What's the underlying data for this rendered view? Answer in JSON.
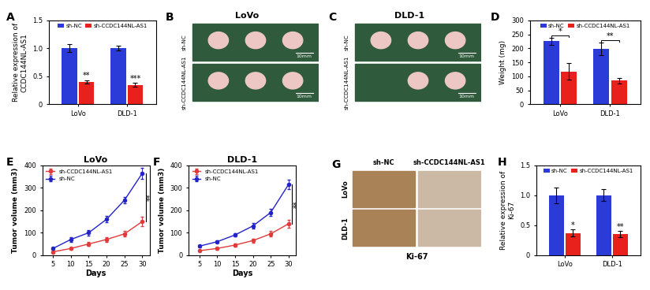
{
  "chart_data": [
    {
      "panel": "A",
      "type": "bar",
      "y_label": "Relative expression of\nCCDC144NL-AS1",
      "categories": [
        "LoVo",
        "DLD-1"
      ],
      "series": [
        {
          "name": "sh-NC",
          "color": "#2b3bd8",
          "values": [
            1.0,
            1.0
          ],
          "errors": [
            0.07,
            0.04
          ]
        },
        {
          "name": "sh-CCDC144NL-AS1",
          "color": "#e8211c",
          "values": [
            0.4,
            0.35
          ],
          "errors": [
            0.03,
            0.03
          ]
        }
      ],
      "annotations": [
        "**",
        "***"
      ],
      "ylim": [
        0,
        1.5
      ],
      "yticks": [
        0,
        0.5,
        {
          "value": 1,
          "label": "1.0"
        },
        1.5
      ],
      "legend": "upper center"
    },
    {
      "panel": "D",
      "type": "bar",
      "y_label": "Weight (mg)",
      "categories": [
        "LoVo",
        "DLD-1"
      ],
      "series": [
        {
          "name": "sh-NC",
          "color": "#2b3bd8",
          "values": [
            225,
            198
          ],
          "errors": [
            12,
            22
          ]
        },
        {
          "name": "sh-CCDC144NL-AS1",
          "color": "#e8211c",
          "values": [
            118,
            85
          ],
          "errors": [
            30,
            10
          ]
        }
      ],
      "annotations": [
        "*",
        "**"
      ],
      "ylim": [
        0,
        300
      ],
      "yticks": [
        0,
        50,
        100,
        150,
        200,
        250,
        300
      ],
      "legend": "upper center"
    },
    {
      "panel": "E",
      "type": "line",
      "title": "LoVo",
      "x_label": "Days",
      "y_label": "Tumor volume (mm3)",
      "x": [
        5,
        10,
        15,
        20,
        25,
        30
      ],
      "series": [
        {
          "name": "sh-CCDC144NL-AS1",
          "color": "#e03a3a",
          "marker": "circle",
          "values": [
            15,
            30,
            50,
            70,
            95,
            150
          ],
          "errors": [
            3,
            5,
            8,
            10,
            12,
            20
          ]
        },
        {
          "name": "sh-NC",
          "color": "#2323c8",
          "marker": "circle",
          "values": [
            30,
            70,
            100,
            160,
            245,
            365
          ],
          "errors": [
            5,
            10,
            12,
            15,
            15,
            25
          ]
        }
      ],
      "annotations": [
        "**"
      ],
      "xlim": [
        2,
        32
      ],
      "xticks": [
        5,
        10,
        15,
        20,
        25,
        30
      ],
      "ylim": [
        0,
        400
      ],
      "yticks": [
        0,
        100,
        200,
        300,
        400
      ],
      "legend": "upper left"
    },
    {
      "panel": "F",
      "type": "line",
      "title": "DLD-1",
      "x_label": "Days",
      "y_label": "Tumor volume (mm3)",
      "x": [
        5,
        10,
        15,
        20,
        25,
        30
      ],
      "series": [
        {
          "name": "sh-CCDC144NL-AS1",
          "color": "#e03a3a",
          "marker": "circle",
          "values": [
            20,
            30,
            45,
            65,
            95,
            140
          ],
          "errors": [
            3,
            5,
            6,
            8,
            12,
            18
          ]
        },
        {
          "name": "sh-NC",
          "color": "#2323c8",
          "marker": "circle",
          "values": [
            40,
            60,
            90,
            130,
            190,
            315
          ],
          "errors": [
            4,
            6,
            8,
            12,
            15,
            20
          ]
        }
      ],
      "annotations": [
        "**"
      ],
      "xlim": [
        2,
        32
      ],
      "xticks": [
        5,
        10,
        15,
        20,
        25,
        30
      ],
      "ylim": [
        0,
        400
      ],
      "yticks": [
        0,
        100,
        200,
        300,
        400
      ],
      "legend": "upper left"
    },
    {
      "panel": "H",
      "type": "bar",
      "y_label": "Relative expression of\nKi-67",
      "categories": [
        "LoVo",
        "DLD-1"
      ],
      "series": [
        {
          "name": "sh-NC",
          "color": "#2b3bd8",
          "values": [
            1.0,
            1.0
          ],
          "errors": [
            0.13,
            0.1
          ]
        },
        {
          "name": "sh-CCDC144NL-AS1",
          "color": "#e8211c",
          "values": [
            0.37,
            0.35
          ],
          "errors": [
            0.06,
            0.05
          ]
        }
      ],
      "annotations": [
        "*",
        "**"
      ],
      "ylim": [
        0,
        1.5
      ],
      "yticks": [
        0,
        0.5,
        {
          "value": 1,
          "label": "1.0"
        },
        1.5
      ],
      "legend": "upper center"
    }
  ],
  "images": [
    {
      "panel": "B",
      "title": "LoVo",
      "rows": [
        "sh-NC",
        "sh-CCDC144NL-AS1"
      ],
      "scale_bar": "10mm"
    },
    {
      "panel": "C",
      "title": "DLD-1",
      "rows": [
        "sh-NC",
        "sh-CCDC144NL-AS1"
      ],
      "scale_bar": "10mm"
    },
    {
      "panel": "G",
      "columns": [
        "sh-NC",
        "sh-CCDC144NL-AS1"
      ],
      "rows": [
        "LoVo",
        "DLD-1"
      ],
      "caption": "Ki-67"
    }
  ]
}
